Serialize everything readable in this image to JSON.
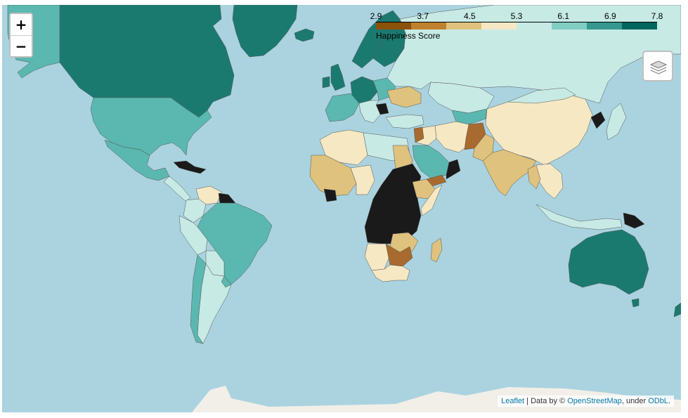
{
  "zoom": {
    "in_label": "+",
    "out_label": "−"
  },
  "legend": {
    "title": "Happiness Score",
    "ticks": [
      "2.9",
      "3.7",
      "4.5",
      "5.3",
      "6.1",
      "6.9",
      "7.8"
    ],
    "colors": [
      "#8c510a",
      "#bf812d",
      "#dfc27d",
      "#f6e8c3",
      "#c7eae5",
      "#80cdc1",
      "#35978f",
      "#01665e"
    ]
  },
  "attribution": {
    "leaflet": "Leaflet",
    "sep": " | Data by © ",
    "osm": "OpenStreetMap",
    "mid": ", under ",
    "odbl": "ODbL",
    "end": "."
  },
  "colors": {
    "ocean": "#aad3df",
    "land_base": "#f2efe9",
    "no_data": "#1a1a1a"
  }
}
